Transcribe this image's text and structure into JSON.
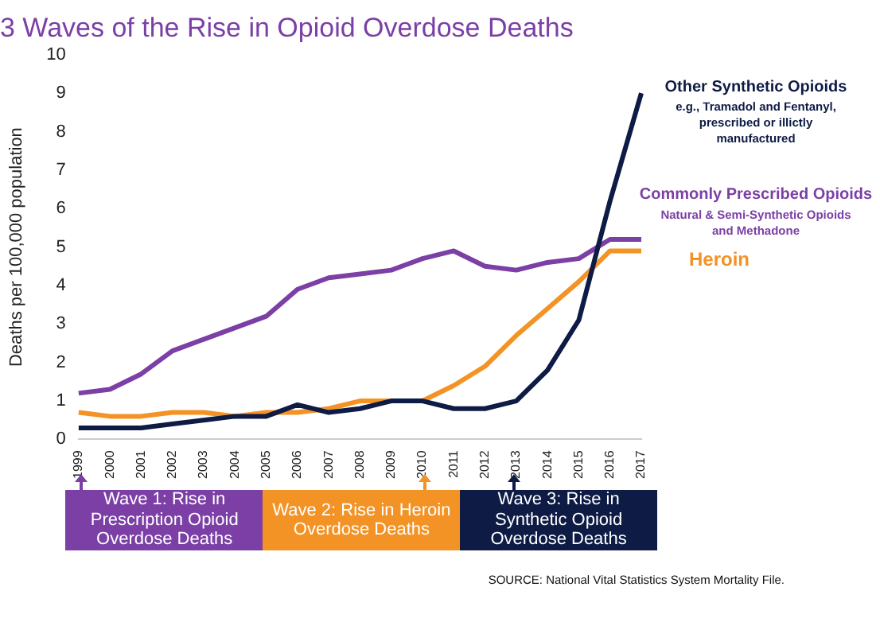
{
  "chart_data": {
    "type": "line",
    "title": "3 Waves of the Rise in Opioid Overdose Deaths",
    "ylabel": "Deaths per 100,000 population",
    "categories": [
      "1999",
      "2000",
      "2001",
      "2002",
      "2003",
      "2004",
      "2005",
      "2006",
      "2007",
      "2008",
      "2009",
      "2010",
      "2011",
      "2012",
      "2013",
      "2014",
      "2015",
      "2016",
      "2017"
    ],
    "series": [
      {
        "name": "Other Synthetic Opioids",
        "color": "#0d1b45",
        "values": [
          0.3,
          0.3,
          0.3,
          0.4,
          0.5,
          0.6,
          0.6,
          0.9,
          0.7,
          0.8,
          1.0,
          1.0,
          0.8,
          0.8,
          1.0,
          1.8,
          3.1,
          6.2,
          9.0
        ]
      },
      {
        "name": "Commonly Prescribed Opioids",
        "color": "#7b3fa6",
        "values": [
          1.2,
          1.3,
          1.7,
          2.3,
          2.6,
          2.9,
          3.2,
          3.9,
          4.2,
          4.3,
          4.4,
          4.7,
          4.9,
          4.5,
          4.4,
          4.6,
          4.7,
          5.2,
          5.2
        ]
      },
      {
        "name": "Heroin",
        "color": "#f39325",
        "values": [
          0.7,
          0.6,
          0.6,
          0.7,
          0.7,
          0.6,
          0.7,
          0.7,
          0.8,
          1.0,
          1.0,
          1.0,
          1.4,
          1.9,
          2.7,
          3.4,
          4.1,
          4.9,
          4.9
        ]
      }
    ],
    "ylim": [
      0,
      10
    ],
    "yticks": [
      0,
      1,
      2,
      3,
      4,
      5,
      6,
      7,
      8,
      9,
      10
    ],
    "grid": false,
    "marker": "none",
    "line_style": "solid",
    "legend": false,
    "annotations": [
      "e.g., Tramadol and Fentanyl, prescribed or illictly manufactured",
      "Natural & Semi-Synthetic Opioids and Methadone",
      "Wave 1: Rise in Prescription Opioid Overdose Deaths",
      "Wave 2: Rise in Heroin Overdose Deaths",
      "Wave 3: Rise in Synthetic Opioid Overdose Deaths",
      "SOURCE: National Vital Statistics System Mortality File."
    ]
  }
}
